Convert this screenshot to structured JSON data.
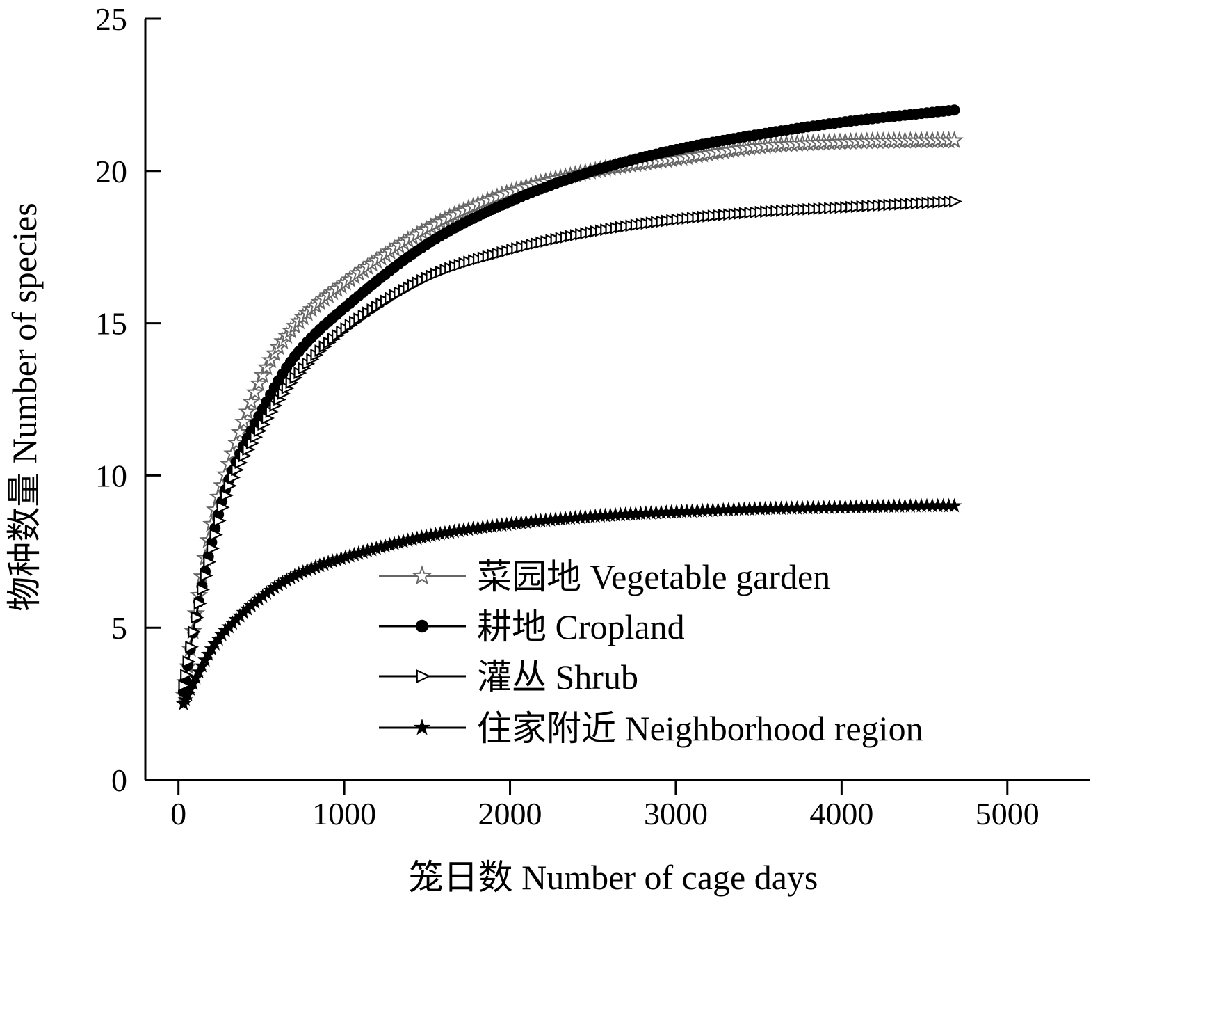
{
  "chart_data": {
    "type": "line",
    "title": "",
    "xlabel": "笼日数 Number of cage days",
    "ylabel": "物种数量 Number of species",
    "xlim": [
      -200,
      5500
    ],
    "ylim": [
      0,
      25
    ],
    "xticks": [
      "0",
      "1000",
      "2000",
      "3000",
      "4000",
      "5000"
    ],
    "yticks": [
      "0",
      "5",
      "10",
      "15",
      "20",
      "25"
    ],
    "grid": false,
    "legend_position": "bottom-right",
    "x_start": 30,
    "x_end": 4680,
    "series": [
      {
        "name": "菜园地 Vegetable garden",
        "marker": "open-star",
        "color": "#666666",
        "x": [
          30,
          100,
          200,
          300,
          500,
          700,
          1000,
          1500,
          2000,
          2500,
          3000,
          3500,
          4000,
          4500,
          4680
        ],
        "y": [
          2.8,
          5.3,
          8.4,
          10.3,
          13.2,
          14.9,
          16.3,
          18.1,
          19.3,
          20.0,
          20.4,
          20.8,
          20.95,
          21.0,
          21.0
        ]
      },
      {
        "name": "耕地 Cropland",
        "marker": "filled-circle",
        "color": "#000000",
        "x": [
          30,
          100,
          200,
          300,
          500,
          700,
          1000,
          1500,
          2000,
          2500,
          3000,
          3500,
          4000,
          4500,
          4680
        ],
        "y": [
          2.9,
          5.2,
          7.8,
          9.8,
          12.1,
          13.9,
          15.5,
          17.6,
          19.0,
          20.0,
          20.7,
          21.2,
          21.6,
          21.9,
          22.0
        ]
      },
      {
        "name": "灌丛 Shrub",
        "marker": "open-triangle-right",
        "color": "#000000",
        "x": [
          30,
          100,
          200,
          300,
          500,
          700,
          1000,
          1500,
          2000,
          2500,
          3000,
          3500,
          4000,
          4500,
          4680
        ],
        "y": [
          3.1,
          5.2,
          7.6,
          9.6,
          11.6,
          13.2,
          14.8,
          16.5,
          17.4,
          18.0,
          18.4,
          18.65,
          18.8,
          18.95,
          19.0
        ]
      },
      {
        "name": "住家附近 Neighborhood region",
        "marker": "filled-star",
        "color": "#000000",
        "x": [
          30,
          100,
          200,
          300,
          500,
          700,
          1000,
          1500,
          2000,
          2500,
          3000,
          3500,
          4000,
          4500,
          4680
        ],
        "y": [
          2.5,
          3.3,
          4.3,
          5.0,
          6.0,
          6.7,
          7.3,
          8.0,
          8.4,
          8.65,
          8.8,
          8.9,
          8.95,
          9.0,
          9.0
        ]
      }
    ]
  }
}
